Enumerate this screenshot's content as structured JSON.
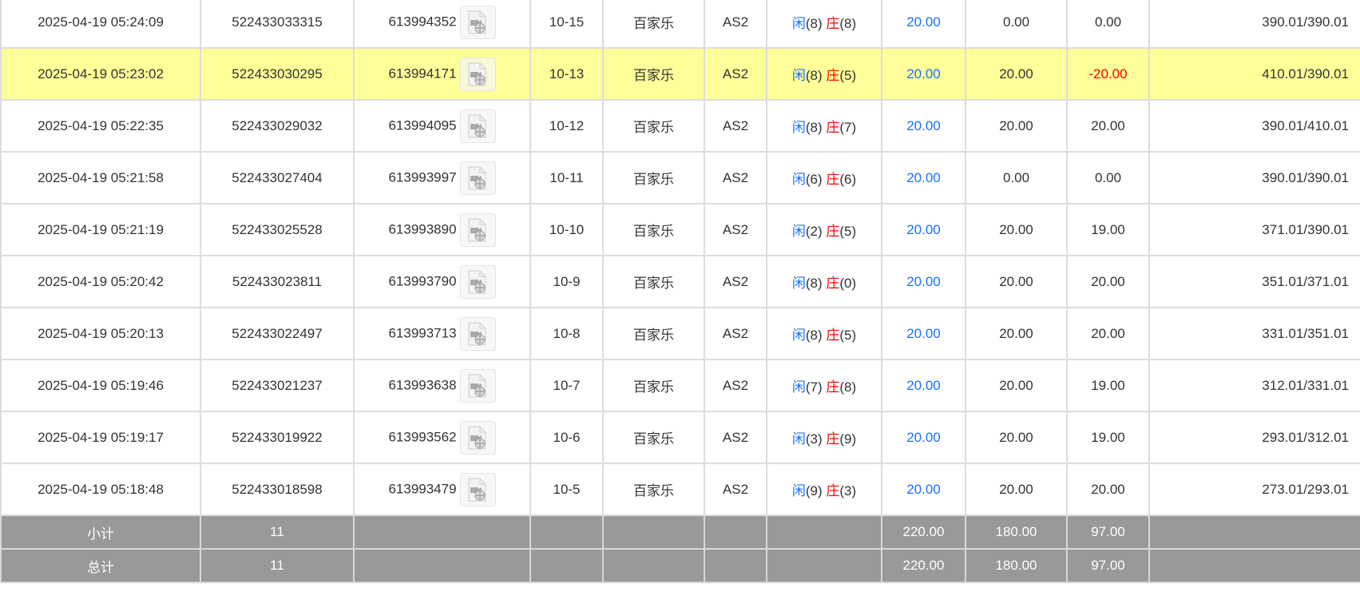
{
  "rows": [
    {
      "time": "2025-04-19 05:24:09",
      "bet_id": "522433033315",
      "round": "613994352",
      "shoe": "10-15",
      "game": "百家乐",
      "table": "AS2",
      "player": "闲",
      "player_pts": "(8)",
      "banker": "庄",
      "banker_pts": "(8)",
      "bet": "20.00",
      "valid": "0.00",
      "win": "0.00",
      "balance": "390.01/390.01"
    },
    {
      "time": "2025-04-19 05:23:02",
      "bet_id": "522433030295",
      "round": "613994171",
      "shoe": "10-13",
      "game": "百家乐",
      "table": "AS2",
      "player": "闲",
      "player_pts": "(8)",
      "banker": "庄",
      "banker_pts": "(5)",
      "bet": "20.00",
      "valid": "20.00",
      "win": "-20.00",
      "balance": "410.01/390.01",
      "highlight": true
    },
    {
      "time": "2025-04-19 05:22:35",
      "bet_id": "522433029032",
      "round": "613994095",
      "shoe": "10-12",
      "game": "百家乐",
      "table": "AS2",
      "player": "闲",
      "player_pts": "(8)",
      "banker": "庄",
      "banker_pts": "(7)",
      "bet": "20.00",
      "valid": "20.00",
      "win": "20.00",
      "balance": "390.01/410.01"
    },
    {
      "time": "2025-04-19 05:21:58",
      "bet_id": "522433027404",
      "round": "613993997",
      "shoe": "10-11",
      "game": "百家乐",
      "table": "AS2",
      "player": "闲",
      "player_pts": "(6)",
      "banker": "庄",
      "banker_pts": "(6)",
      "bet": "20.00",
      "valid": "0.00",
      "win": "0.00",
      "balance": "390.01/390.01"
    },
    {
      "time": "2025-04-19 05:21:19",
      "bet_id": "522433025528",
      "round": "613993890",
      "shoe": "10-10",
      "game": "百家乐",
      "table": "AS2",
      "player": "闲",
      "player_pts": "(2)",
      "banker": "庄",
      "banker_pts": "(5)",
      "bet": "20.00",
      "valid": "20.00",
      "win": "19.00",
      "balance": "371.01/390.01"
    },
    {
      "time": "2025-04-19 05:20:42",
      "bet_id": "522433023811",
      "round": "613993790",
      "shoe": "10-9",
      "game": "百家乐",
      "table": "AS2",
      "player": "闲",
      "player_pts": "(8)",
      "banker": "庄",
      "banker_pts": "(0)",
      "bet": "20.00",
      "valid": "20.00",
      "win": "20.00",
      "balance": "351.01/371.01"
    },
    {
      "time": "2025-04-19 05:20:13",
      "bet_id": "522433022497",
      "round": "613993713",
      "shoe": "10-8",
      "game": "百家乐",
      "table": "AS2",
      "player": "闲",
      "player_pts": "(8)",
      "banker": "庄",
      "banker_pts": "(5)",
      "bet": "20.00",
      "valid": "20.00",
      "win": "20.00",
      "balance": "331.01/351.01"
    },
    {
      "time": "2025-04-19 05:19:46",
      "bet_id": "522433021237",
      "round": "613993638",
      "shoe": "10-7",
      "game": "百家乐",
      "table": "AS2",
      "player": "闲",
      "player_pts": "(7)",
      "banker": "庄",
      "banker_pts": "(8)",
      "bet": "20.00",
      "valid": "20.00",
      "win": "19.00",
      "balance": "312.01/331.01"
    },
    {
      "time": "2025-04-19 05:19:17",
      "bet_id": "522433019922",
      "round": "613993562",
      "shoe": "10-6",
      "game": "百家乐",
      "table": "AS2",
      "player": "闲",
      "player_pts": "(3)",
      "banker": "庄",
      "banker_pts": "(9)",
      "bet": "20.00",
      "valid": "20.00",
      "win": "19.00",
      "balance": "293.01/312.01"
    },
    {
      "time": "2025-04-19 05:18:48",
      "bet_id": "522433018598",
      "round": "613993479",
      "shoe": "10-5",
      "game": "百家乐",
      "table": "AS2",
      "player": "闲",
      "player_pts": "(9)",
      "banker": "庄",
      "banker_pts": "(3)",
      "bet": "20.00",
      "valid": "20.00",
      "win": "20.00",
      "balance": "273.01/293.01"
    }
  ],
  "footer": [
    {
      "label": "小计",
      "count": "11",
      "bet": "220.00",
      "valid": "180.00",
      "win": "97.00"
    },
    {
      "label": "总计",
      "count": "11",
      "bet": "220.00",
      "valid": "180.00",
      "win": "97.00"
    }
  ],
  "colors": {
    "highlight": "#ffff99",
    "player": "#1a6fff",
    "banker": "#ff0000",
    "negative": "#ff0000",
    "footer_bg": "#999999"
  },
  "icons": {
    "replay": "video-file-icon"
  }
}
